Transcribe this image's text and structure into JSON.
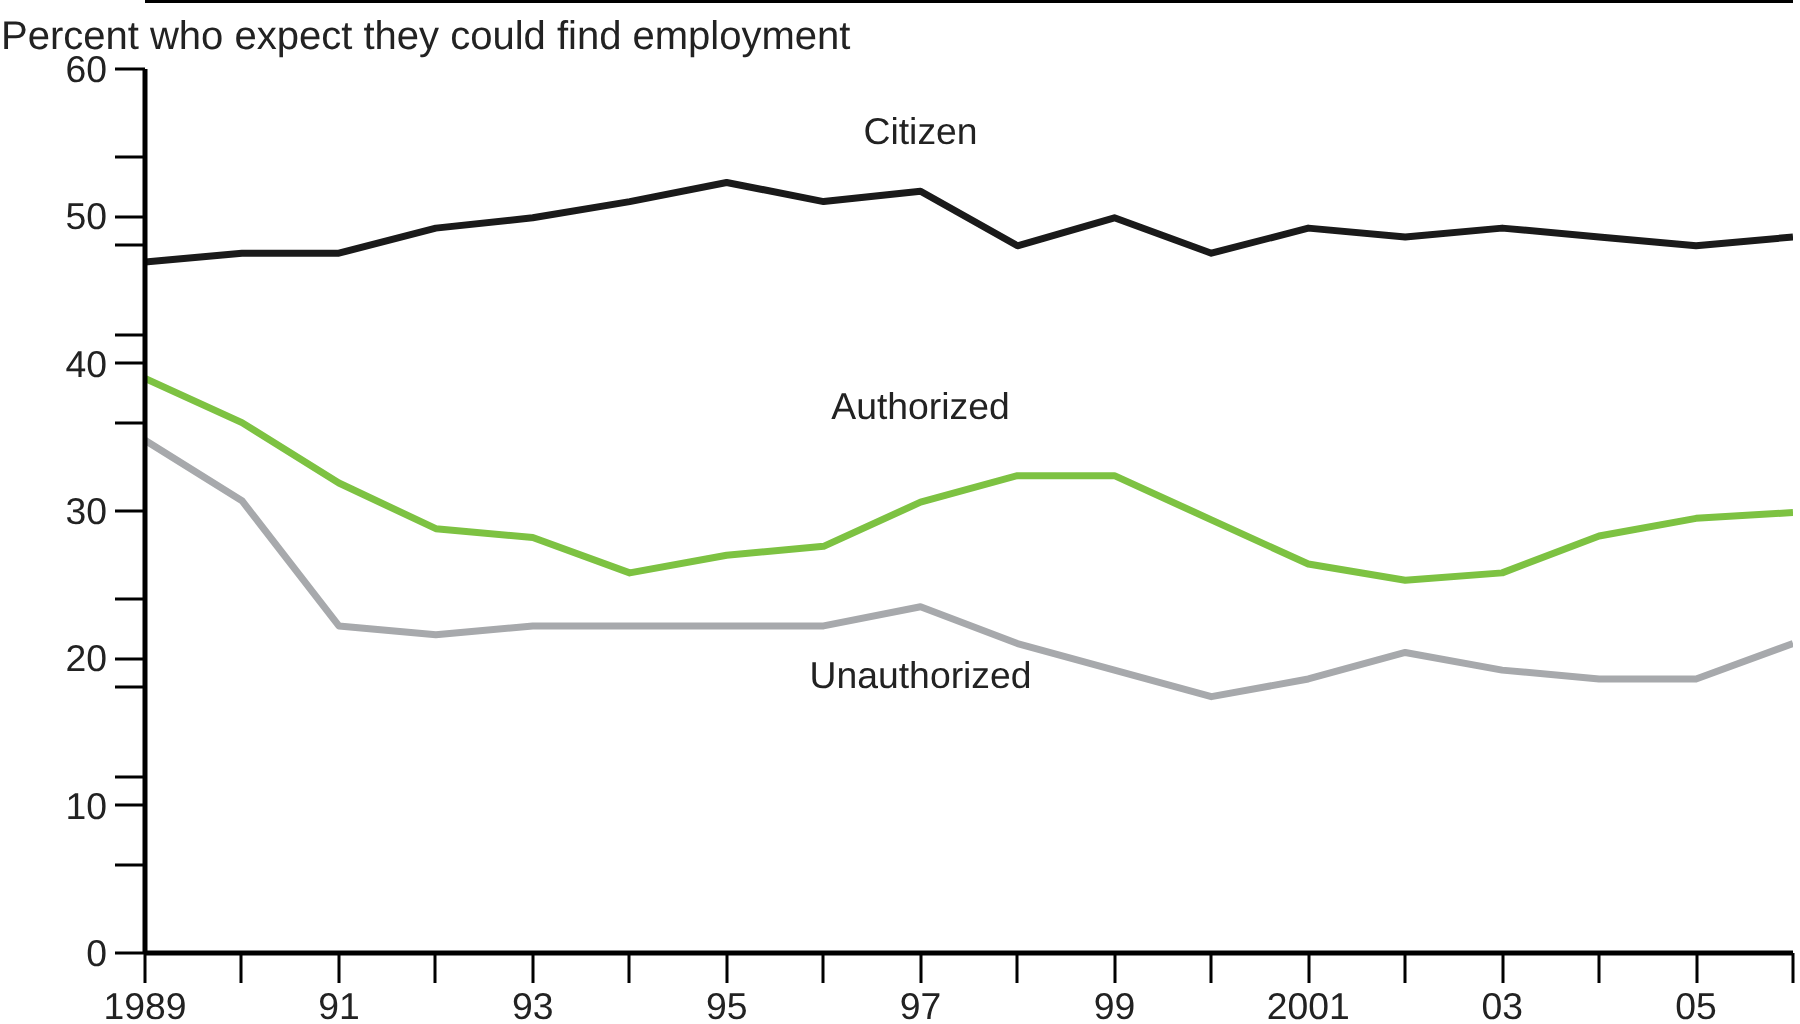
{
  "chart_data": {
    "type": "line",
    "title": "Percent who expect they could find employment",
    "x": [
      1989,
      1990,
      1991,
      1992,
      1993,
      1994,
      1995,
      1996,
      1997,
      1998,
      1999,
      2000,
      2001,
      2002,
      2003,
      2004,
      2005,
      2006
    ],
    "series": [
      {
        "name": "Citizen",
        "color": "#1a1a1a",
        "values": [
          46.9,
          47.5,
          47.5,
          49.2,
          49.9,
          51.0,
          52.3,
          51.0,
          51.7,
          48.0,
          49.9,
          47.5,
          49.2,
          48.6,
          49.2,
          48.6,
          48.0,
          48.6
        ]
      },
      {
        "name": "Authorized",
        "color": "#7dc242",
        "values": [
          39.0,
          36.0,
          31.9,
          28.8,
          28.2,
          25.8,
          27.0,
          27.6,
          30.6,
          32.4,
          32.4,
          29.4,
          26.4,
          25.3,
          25.8,
          28.3,
          29.5,
          29.9
        ]
      },
      {
        "name": "Unauthorized",
        "color": "#a7a9ac",
        "values": [
          34.8,
          30.7,
          22.2,
          21.6,
          22.2,
          22.2,
          22.2,
          22.2,
          23.5,
          21.0,
          19.2,
          17.4,
          18.6,
          20.4,
          19.2,
          18.6,
          18.6,
          21.0
        ]
      }
    ],
    "xlim": [
      1989,
      2006
    ],
    "xticks": [
      {
        "value": 1989,
        "label": "1989"
      },
      {
        "value": 1990,
        "label": null
      },
      {
        "value": 1991,
        "label": "91"
      },
      {
        "value": 1992,
        "label": null
      },
      {
        "value": 1993,
        "label": "93"
      },
      {
        "value": 1994,
        "label": null
      },
      {
        "value": 1995,
        "label": "95"
      },
      {
        "value": 1996,
        "label": null
      },
      {
        "value": 1997,
        "label": "97"
      },
      {
        "value": 1998,
        "label": null
      },
      {
        "value": 1999,
        "label": "99"
      },
      {
        "value": 2000,
        "label": null
      },
      {
        "value": 2001,
        "label": "2001"
      },
      {
        "value": 2002,
        "label": null
      },
      {
        "value": 2003,
        "label": "03"
      },
      {
        "value": 2004,
        "label": null
      },
      {
        "value": 2005,
        "label": "05"
      },
      {
        "value": 2006,
        "label": null
      }
    ],
    "ylim": [
      0,
      60
    ],
    "yticks": [
      0,
      {
        "value": 6,
        "label": null
      },
      10,
      {
        "value": 12,
        "label": null
      },
      {
        "value": 18,
        "label": null
      },
      20,
      {
        "value": 24,
        "label": null
      },
      30,
      {
        "value": 36,
        "label": null
      },
      40,
      {
        "value": 42,
        "label": null
      },
      {
        "value": 48,
        "label": null
      },
      50,
      {
        "value": 54,
        "label": null
      },
      60
    ],
    "grid": false,
    "legend": false,
    "marker": "none",
    "line_style": "solid"
  }
}
